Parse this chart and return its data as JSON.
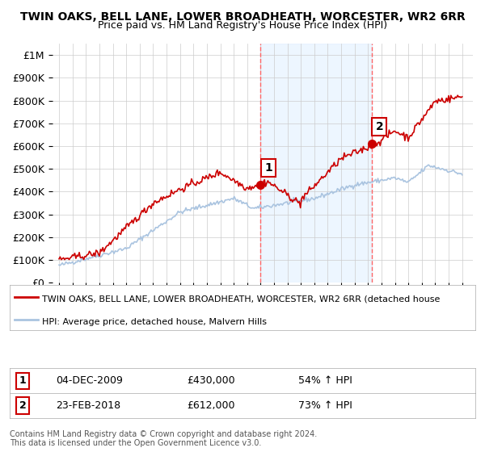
{
  "title": "TWIN OAKS, BELL LANE, LOWER BROADHEATH, WORCESTER, WR2 6RR",
  "subtitle": "Price paid vs. HM Land Registry's House Price Index (HPI)",
  "ylabel_ticks": [
    "£0",
    "£100K",
    "£200K",
    "£300K",
    "£400K",
    "£500K",
    "£600K",
    "£700K",
    "£800K",
    "£900K",
    "£1M"
  ],
  "ytick_values": [
    0,
    100000,
    200000,
    300000,
    400000,
    500000,
    600000,
    700000,
    800000,
    900000,
    1000000
  ],
  "ylim": [
    0,
    1050000
  ],
  "sale1_date_idx": 15.0,
  "sale1_price": 430000,
  "sale1_label": "1",
  "sale1_date_str": "04-DEC-2009",
  "sale1_price_str": "£430,000",
  "sale1_hpi_str": "54% ↑ HPI",
  "sale2_date_idx": 23.25,
  "sale2_price": 612000,
  "sale2_label": "2",
  "sale2_date_str": "23-FEB-2018",
  "sale2_price_str": "£612,000",
  "sale2_hpi_str": "73% ↑ HPI",
  "hpi_color": "#aac4e0",
  "price_color": "#cc0000",
  "sale_marker_color": "#cc0000",
  "vline_color": "#ff6666",
  "background_color": "#ffffff",
  "legend_line1": "TWIN OAKS, BELL LANE, LOWER BROADHEATH, WORCESTER, WR2 6RR (detached house",
  "legend_line2": "HPI: Average price, detached house, Malvern Hills",
  "footnote": "Contains HM Land Registry data © Crown copyright and database right 2024.\nThis data is licensed under the Open Government Licence v3.0."
}
